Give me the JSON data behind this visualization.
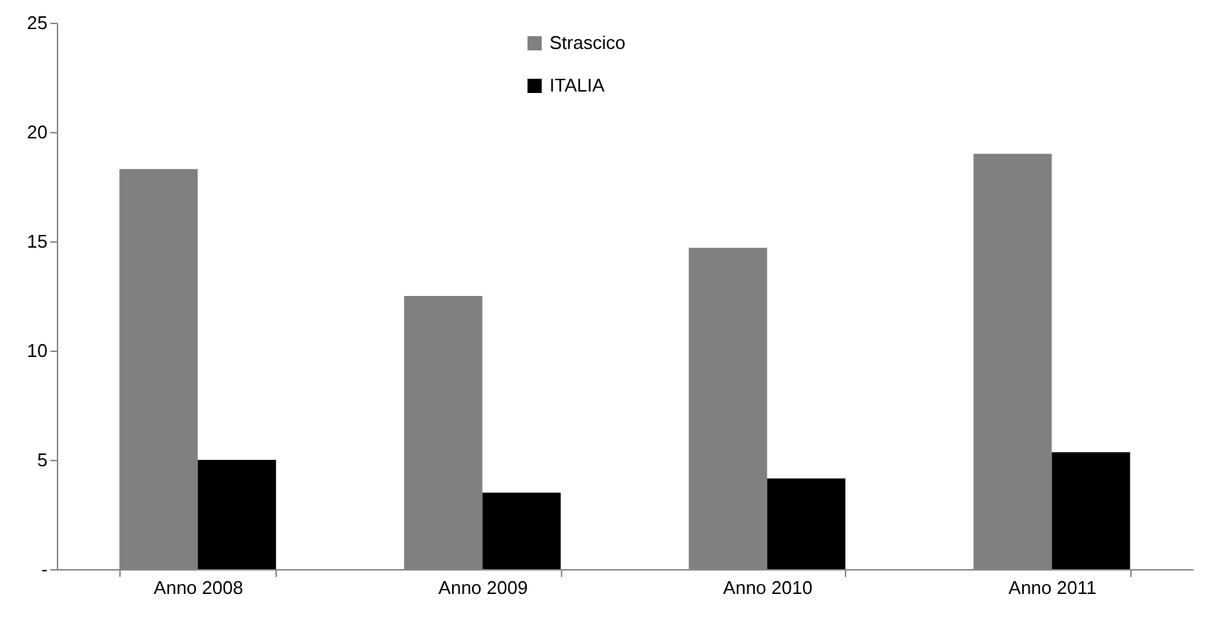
{
  "chart_data": {
    "type": "bar",
    "categories": [
      "Anno 2008",
      "Anno 2009",
      "Anno 2010",
      "Anno 2011"
    ],
    "series": [
      {
        "name": "Strascico",
        "color": "#808080",
        "values": [
          18.3,
          12.5,
          14.7,
          19.0
        ]
      },
      {
        "name": "ITALIA",
        "color": "#000000",
        "values": [
          5.0,
          3.5,
          4.15,
          5.35
        ]
      }
    ],
    "ylim": [
      0,
      25
    ],
    "yticks": [
      {
        "value": 0,
        "label": "-"
      },
      5,
      10,
      15,
      20,
      25
    ],
    "grid": false,
    "legend": "top"
  }
}
